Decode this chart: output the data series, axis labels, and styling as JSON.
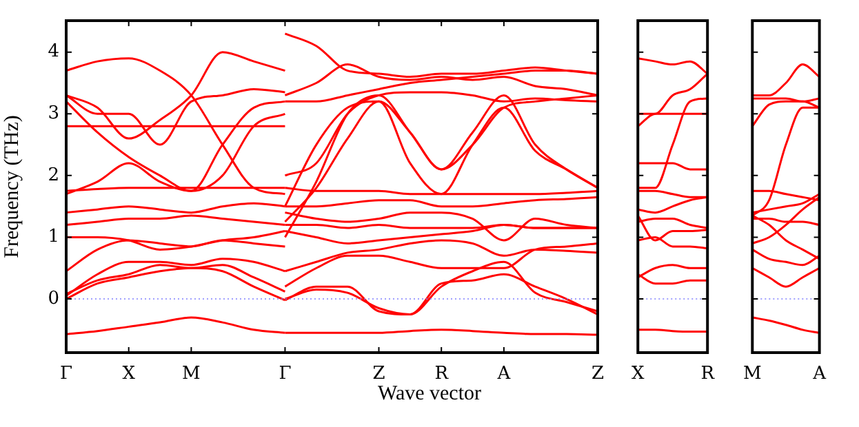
{
  "chart_data": [
    {
      "type": "line",
      "ylabel": "Frequency (THz)",
      "xlabel": "Wave vector",
      "categories": [
        "Γ",
        null,
        "X",
        null,
        "M",
        null,
        null,
        "Γ",
        null,
        null,
        "Z",
        null,
        "R",
        null,
        "A",
        null,
        null,
        "Z"
      ],
      "ylim": [
        -0.87,
        4.51
      ],
      "yticks": [
        0,
        1,
        2,
        3,
        4
      ],
      "grid": false,
      "legend": false,
      "marker": "none",
      "line_style": "solid",
      "ref_lines": [
        {
          "axis": "y",
          "value": 0,
          "color": "#8080ff",
          "line_style": "dotted"
        }
      ],
      "series": [
        {
          "color": "#ff0000",
          "values": [
            -0.57,
            -0.52,
            -0.45,
            -0.38,
            -0.3,
            -0.38,
            -0.5,
            -0.55,
            null,
            null,
            null,
            null,
            null,
            null,
            null,
            null,
            null,
            null
          ]
        },
        {
          "color": "#ff0000",
          "values": [
            0,
            0.25,
            0.35,
            0.45,
            0.5,
            0.45,
            0.2,
            -0.02,
            null,
            null,
            null,
            null,
            null,
            null,
            null,
            null,
            null,
            null
          ]
        },
        {
          "color": "#ff0000",
          "values": [
            0.08,
            0.3,
            0.4,
            0.55,
            0.5,
            0.55,
            0.35,
            0.12,
            null,
            null,
            null,
            null,
            null,
            null,
            null,
            null,
            null,
            null
          ]
        },
        {
          "color": "#ff0000",
          "values": [
            0.05,
            0.4,
            0.6,
            0.6,
            0.55,
            0.65,
            0.6,
            0.45,
            null,
            null,
            null,
            null,
            null,
            null,
            null,
            null,
            null,
            null
          ]
        },
        {
          "color": "#ff0000",
          "values": [
            0.45,
            0.8,
            0.95,
            0.9,
            0.85,
            0.95,
            0.9,
            0.85,
            null,
            null,
            null,
            null,
            null,
            null,
            null,
            null,
            null,
            null
          ]
        },
        {
          "color": "#ff0000",
          "values": [
            1,
            1,
            0.95,
            0.8,
            0.85,
            0.95,
            1,
            1.1,
            null,
            null,
            null,
            null,
            null,
            null,
            null,
            null,
            null,
            null
          ]
        },
        {
          "color": "#ff0000",
          "values": [
            1.2,
            1.25,
            1.3,
            1.3,
            1.35,
            1.3,
            1.25,
            1.2,
            null,
            null,
            null,
            null,
            null,
            null,
            null,
            null,
            null,
            null
          ]
        },
        {
          "color": "#ff0000",
          "values": [
            1.4,
            1.45,
            1.5,
            1.45,
            1.4,
            1.5,
            1.55,
            1.5,
            null,
            null,
            null,
            null,
            null,
            null,
            null,
            null,
            null,
            null
          ]
        },
        {
          "color": "#ff0000",
          "values": [
            1.75,
            1.78,
            1.8,
            1.8,
            1.8,
            1.8,
            1.8,
            1.8,
            null,
            null,
            null,
            null,
            null,
            null,
            null,
            null,
            null,
            null
          ]
        },
        {
          "color": "#ff0000",
          "values": [
            1.7,
            1.9,
            2.2,
            1.9,
            1.75,
            2,
            2.8,
            3,
            null,
            null,
            null,
            null,
            null,
            null,
            null,
            null,
            null,
            null
          ]
        },
        {
          "color": "#ff0000",
          "values": [
            2.8,
            2.8,
            2.8,
            2.8,
            2.8,
            2.8,
            2.8,
            2.8,
            null,
            null,
            null,
            null,
            null,
            null,
            null,
            null,
            null,
            null
          ]
        },
        {
          "color": "#ff0000",
          "values": [
            3.7,
            3.85,
            3.9,
            3.7,
            3.3,
            2.5,
            1.8,
            1.7,
            null,
            null,
            null,
            null,
            null,
            null,
            null,
            null,
            null,
            null
          ]
        },
        {
          "color": "#ff0000",
          "values": [
            3.3,
            3.1,
            2.6,
            2.9,
            3.3,
            4,
            3.85,
            3.7,
            null,
            null,
            null,
            null,
            null,
            null,
            null,
            null,
            null,
            null
          ]
        },
        {
          "color": "#ff0000",
          "values": [
            3.2,
            2.7,
            2.3,
            2,
            1.75,
            2.5,
            3.1,
            3.2,
            null,
            null,
            null,
            null,
            null,
            null,
            null,
            null,
            null,
            null
          ]
        },
        {
          "color": "#ff0000",
          "values": [
            3.3,
            3,
            3,
            2.5,
            3.2,
            3.3,
            3.4,
            3.35,
            null,
            null,
            null,
            null,
            null,
            null,
            null,
            null,
            null,
            null
          ]
        },
        {
          "color": "#ff0000",
          "values": [
            null,
            null,
            null,
            null,
            null,
            null,
            null,
            -0.55,
            -0.55,
            -0.55,
            -0.55,
            -0.52,
            -0.5,
            -0.52,
            -0.55,
            -0.57,
            -0.57,
            -0.58
          ]
        },
        {
          "color": "#ff0000",
          "values": [
            null,
            null,
            null,
            null,
            null,
            null,
            null,
            -0.02,
            0.2,
            0.2,
            -0.2,
            -0.25,
            0.25,
            0.3,
            0.4,
            0.2,
            0,
            -0.25
          ]
        },
        {
          "color": "#ff0000",
          "values": [
            null,
            null,
            null,
            null,
            null,
            null,
            null,
            0,
            0.15,
            0.1,
            -0.15,
            -0.25,
            0.2,
            0.45,
            0.6,
            0.1,
            -0.05,
            -0.2
          ]
        },
        {
          "color": "#ff0000",
          "values": [
            null,
            null,
            null,
            null,
            null,
            null,
            null,
            0.2,
            0.5,
            0.7,
            0.7,
            0.6,
            0.5,
            0.5,
            0.5,
            0.8,
            0.85,
            0.9
          ]
        },
        {
          "color": "#ff0000",
          "values": [
            null,
            null,
            null,
            null,
            null,
            null,
            null,
            0.45,
            0.6,
            0.75,
            0.8,
            0.9,
            0.95,
            0.9,
            0.7,
            0.8,
            0.78,
            0.75
          ]
        },
        {
          "color": "#ff0000",
          "values": [
            null,
            null,
            null,
            null,
            null,
            null,
            null,
            1.1,
            1,
            0.9,
            0.95,
            1,
            1.05,
            1.1,
            1.2,
            1.15,
            1.15,
            1.15
          ]
        },
        {
          "color": "#ff0000",
          "values": [
            null,
            null,
            null,
            null,
            null,
            null,
            null,
            1.2,
            1.2,
            1.15,
            1.2,
            1.15,
            1.15,
            1.15,
            1.2,
            1.15,
            1.15,
            1.15
          ]
        },
        {
          "color": "#ff0000",
          "values": [
            null,
            null,
            null,
            null,
            null,
            null,
            null,
            1.4,
            1.3,
            1.25,
            1.3,
            1.4,
            1.4,
            1.3,
            0.95,
            1.3,
            1.2,
            1.15
          ]
        },
        {
          "color": "#ff0000",
          "values": [
            null,
            null,
            null,
            null,
            null,
            null,
            null,
            1.5,
            1.5,
            1.55,
            1.6,
            1.6,
            1.5,
            1.5,
            1.55,
            1.6,
            1.62,
            1.65
          ]
        },
        {
          "color": "#ff0000",
          "values": [
            null,
            null,
            null,
            null,
            null,
            null,
            null,
            1.8,
            1.75,
            1.75,
            1.75,
            1.7,
            1.7,
            1.7,
            1.7,
            1.7,
            1.72,
            1.75
          ]
        },
        {
          "color": "#ff0000",
          "values": [
            null,
            null,
            null,
            null,
            null,
            null,
            null,
            1.25,
            1.8,
            2.6,
            3.2,
            2.7,
            2.1,
            2.5,
            3.1,
            3.2,
            3.25,
            3.3
          ]
        },
        {
          "color": "#ff0000",
          "values": [
            null,
            null,
            null,
            null,
            null,
            null,
            null,
            1,
            1.9,
            3,
            3.3,
            2.7,
            2.1,
            2.7,
            3.3,
            2.5,
            2.1,
            1.8
          ]
        },
        {
          "color": "#ff0000",
          "values": [
            null,
            null,
            null,
            null,
            null,
            null,
            null,
            2,
            2.2,
            3,
            3.3,
            3.35,
            3.35,
            3.3,
            3.2,
            3.25,
            3.22,
            3.2
          ]
        },
        {
          "color": "#ff0000",
          "values": [
            null,
            null,
            null,
            null,
            null,
            null,
            null,
            3.2,
            3.2,
            3.3,
            3.4,
            3.5,
            3.55,
            3.6,
            3.65,
            3.7,
            3.7,
            3.65
          ]
        },
        {
          "color": "#ff0000",
          "values": [
            null,
            null,
            null,
            null,
            null,
            null,
            null,
            4.3,
            4.1,
            3.7,
            3.65,
            3.6,
            3.65,
            3.65,
            3.7,
            3.75,
            3.7,
            3.65
          ]
        },
        {
          "color": "#ff0000",
          "values": [
            null,
            null,
            null,
            null,
            null,
            null,
            null,
            3.3,
            3.5,
            3.8,
            3.6,
            3.55,
            3.6,
            3.55,
            3.6,
            3.45,
            3.4,
            3.3
          ]
        },
        {
          "color": "#ff0000",
          "values": [
            null,
            null,
            null,
            null,
            null,
            null,
            null,
            1.5,
            2.5,
            3.1,
            3.2,
            2.2,
            1.7,
            2.5,
            3.1,
            2.4,
            2.1,
            1.8
          ]
        }
      ]
    },
    {
      "type": "line",
      "categories": [
        "X",
        null,
        null,
        null,
        "R"
      ],
      "ylim": [
        -0.87,
        4.51
      ],
      "yticks": [
        0,
        1,
        2,
        3,
        4
      ],
      "tick_labels": "x",
      "grid": false,
      "legend": false,
      "marker": "none",
      "line_style": "solid",
      "ref_lines": [
        {
          "axis": "y",
          "value": 0,
          "color": "#8080ff",
          "line_style": "dotted"
        }
      ],
      "series": [
        {
          "color": "#ff0000",
          "values": [
            -0.5,
            -0.5,
            -0.52,
            -0.53,
            -0.53
          ]
        },
        {
          "color": "#ff0000",
          "values": [
            0.35,
            0.5,
            0.55,
            0.5,
            0.5
          ]
        },
        {
          "color": "#ff0000",
          "values": [
            0.4,
            0.25,
            0.25,
            0.3,
            0.3
          ]
        },
        {
          "color": "#ff0000",
          "values": [
            0.95,
            1,
            0.85,
            0.85,
            0.82
          ]
        },
        {
          "color": "#ff0000",
          "values": [
            1.35,
            0.95,
            1.1,
            1.1,
            1.12
          ]
        },
        {
          "color": "#ff0000",
          "values": [
            1.25,
            1.3,
            1.3,
            1.2,
            1.15
          ]
        },
        {
          "color": "#ff0000",
          "values": [
            1.45,
            1.4,
            1.5,
            1.6,
            1.65
          ]
        },
        {
          "color": "#ff0000",
          "values": [
            1.75,
            1.75,
            1.7,
            1.65,
            1.65
          ]
        },
        {
          "color": "#ff0000",
          "values": [
            1.8,
            1.8,
            2.5,
            3.2,
            3.25
          ]
        },
        {
          "color": "#ff0000",
          "values": [
            2.2,
            2.2,
            2.2,
            2.1,
            2.1
          ]
        },
        {
          "color": "#ff0000",
          "values": [
            2.8,
            3,
            3,
            3,
            3
          ]
        },
        {
          "color": "#ff0000",
          "values": [
            3.9,
            3.85,
            3.8,
            3.85,
            3.65
          ]
        },
        {
          "color": "#ff0000",
          "values": [
            3,
            3,
            3.3,
            3.4,
            3.65
          ]
        }
      ]
    },
    {
      "type": "line",
      "categories": [
        "M",
        null,
        null,
        null,
        "A"
      ],
      "ylim": [
        -0.87,
        4.51
      ],
      "yticks": [
        0,
        1,
        2,
        3,
        4
      ],
      "tick_labels": "x",
      "grid": false,
      "legend": false,
      "marker": "none",
      "line_style": "solid",
      "ref_lines": [
        {
          "axis": "y",
          "value": 0,
          "color": "#8080ff",
          "line_style": "dotted"
        }
      ],
      "series": [
        {
          "color": "#ff0000",
          "values": [
            -0.3,
            -0.35,
            -0.42,
            -0.5,
            -0.55
          ]
        },
        {
          "color": "#ff0000",
          "values": [
            0.5,
            0.35,
            0.2,
            0.35,
            0.5
          ]
        },
        {
          "color": "#ff0000",
          "values": [
            0.8,
            0.65,
            0.6,
            0.55,
            0.7
          ]
        },
        {
          "color": "#ff0000",
          "values": [
            0.9,
            1,
            1.2,
            1.45,
            1.65
          ]
        },
        {
          "color": "#ff0000",
          "values": [
            1.35,
            1.2,
            0.95,
            0.8,
            0.65
          ]
        },
        {
          "color": "#ff0000",
          "values": [
            1.3,
            1.3,
            1.25,
            1.25,
            1.2
          ]
        },
        {
          "color": "#ff0000",
          "values": [
            1.75,
            1.75,
            1.7,
            1.65,
            1.6
          ]
        },
        {
          "color": "#ff0000",
          "values": [
            1.35,
            1.6,
            2.5,
            3.1,
            3.1
          ]
        },
        {
          "color": "#ff0000",
          "values": [
            2.8,
            3.15,
            3.2,
            3.2,
            3.1
          ]
        },
        {
          "color": "#ff0000",
          "values": [
            3.3,
            3.3,
            3.5,
            3.8,
            3.6
          ]
        },
        {
          "color": "#ff0000",
          "values": [
            3.25,
            3.25,
            3.25,
            3.2,
            3.25
          ]
        },
        {
          "color": "#ff0000",
          "values": [
            1.4,
            1.45,
            1.5,
            1.55,
            1.7
          ]
        }
      ]
    }
  ]
}
